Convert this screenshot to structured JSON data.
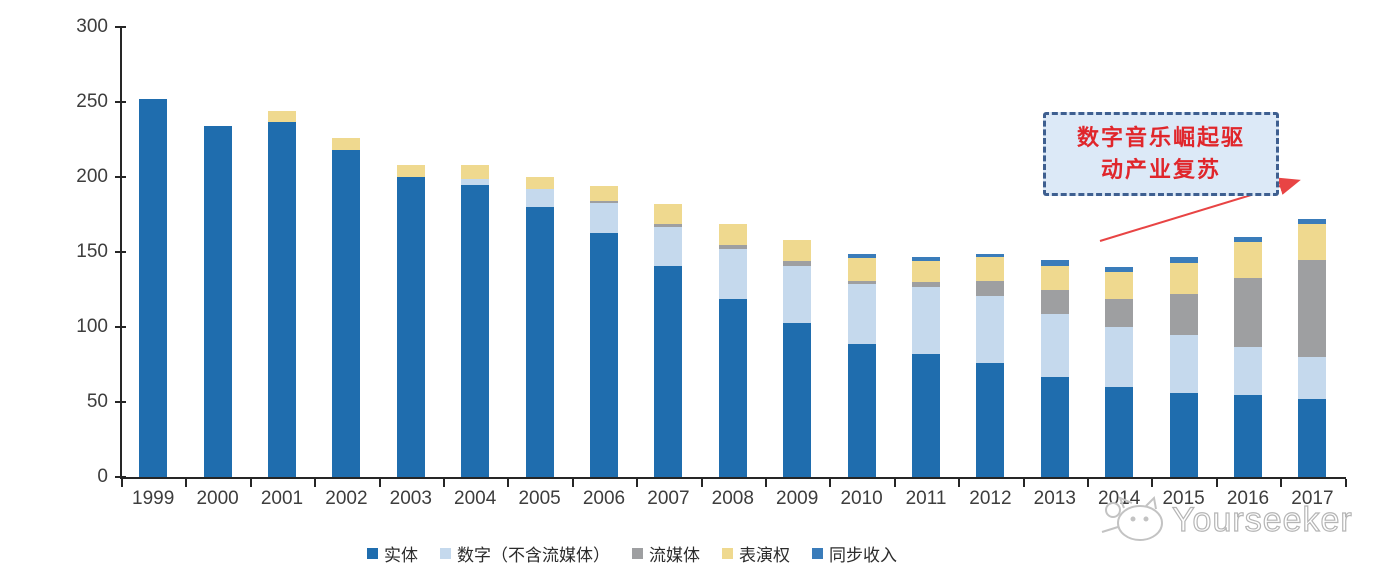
{
  "chart_data": {
    "type": "bar",
    "stacked": true,
    "title": "",
    "xlabel": "",
    "ylabel": "",
    "ylim": [
      0,
      300
    ],
    "yticks": [
      0,
      50,
      100,
      150,
      200,
      250,
      300
    ],
    "grid": false,
    "legend_position": "bottom",
    "categories": [
      "1999",
      "2000",
      "2001",
      "2002",
      "2003",
      "2004",
      "2005",
      "2006",
      "2007",
      "2008",
      "2009",
      "2010",
      "2011",
      "2012",
      "2013",
      "2014",
      "2015",
      "2016",
      "2017"
    ],
    "series": [
      {
        "name": "实体",
        "color": "#1f6dae",
        "values": [
          252,
          234,
          237,
          218,
          200,
          195,
          180,
          163,
          141,
          119,
          103,
          89,
          82,
          76,
          67,
          60,
          56,
          55,
          52
        ]
      },
      {
        "name": "数字（不含流媒体）",
        "color": "#c5d9ed",
        "values": [
          0,
          0,
          0,
          0,
          0,
          4,
          12,
          20,
          26,
          33,
          38,
          40,
          45,
          45,
          42,
          40,
          39,
          32,
          28
        ]
      },
      {
        "name": "流媒体",
        "color": "#9e9fa1",
        "values": [
          0,
          0,
          0,
          0,
          0,
          0,
          0,
          1,
          2,
          3,
          3,
          2,
          3,
          10,
          16,
          19,
          27,
          46,
          65
        ]
      },
      {
        "name": "表演权",
        "color": "#efd98f",
        "values": [
          0,
          0,
          7,
          8,
          8,
          9,
          8,
          10,
          13,
          14,
          14,
          15,
          14,
          16,
          16,
          18,
          21,
          24,
          24
        ]
      },
      {
        "name": "同步收入",
        "color": "#3a7cba",
        "values": [
          0,
          0,
          0,
          0,
          0,
          0,
          0,
          0,
          0,
          0,
          0,
          3,
          3,
          2,
          4,
          3,
          4,
          3,
          3
        ]
      }
    ]
  },
  "axis": {
    "line_color": "#262626",
    "label_color": "#3d3d3d"
  },
  "annotation": {
    "line1": "数字音乐崛起驱",
    "line2": "动产业复苏",
    "text_color": "#e0262b",
    "border_color": "#3e5f90",
    "fill_color": "#dce9f7",
    "arrow_color": "#e84444"
  },
  "watermark": {
    "text": "Yourseeker",
    "color": "#bdbdbd"
  }
}
